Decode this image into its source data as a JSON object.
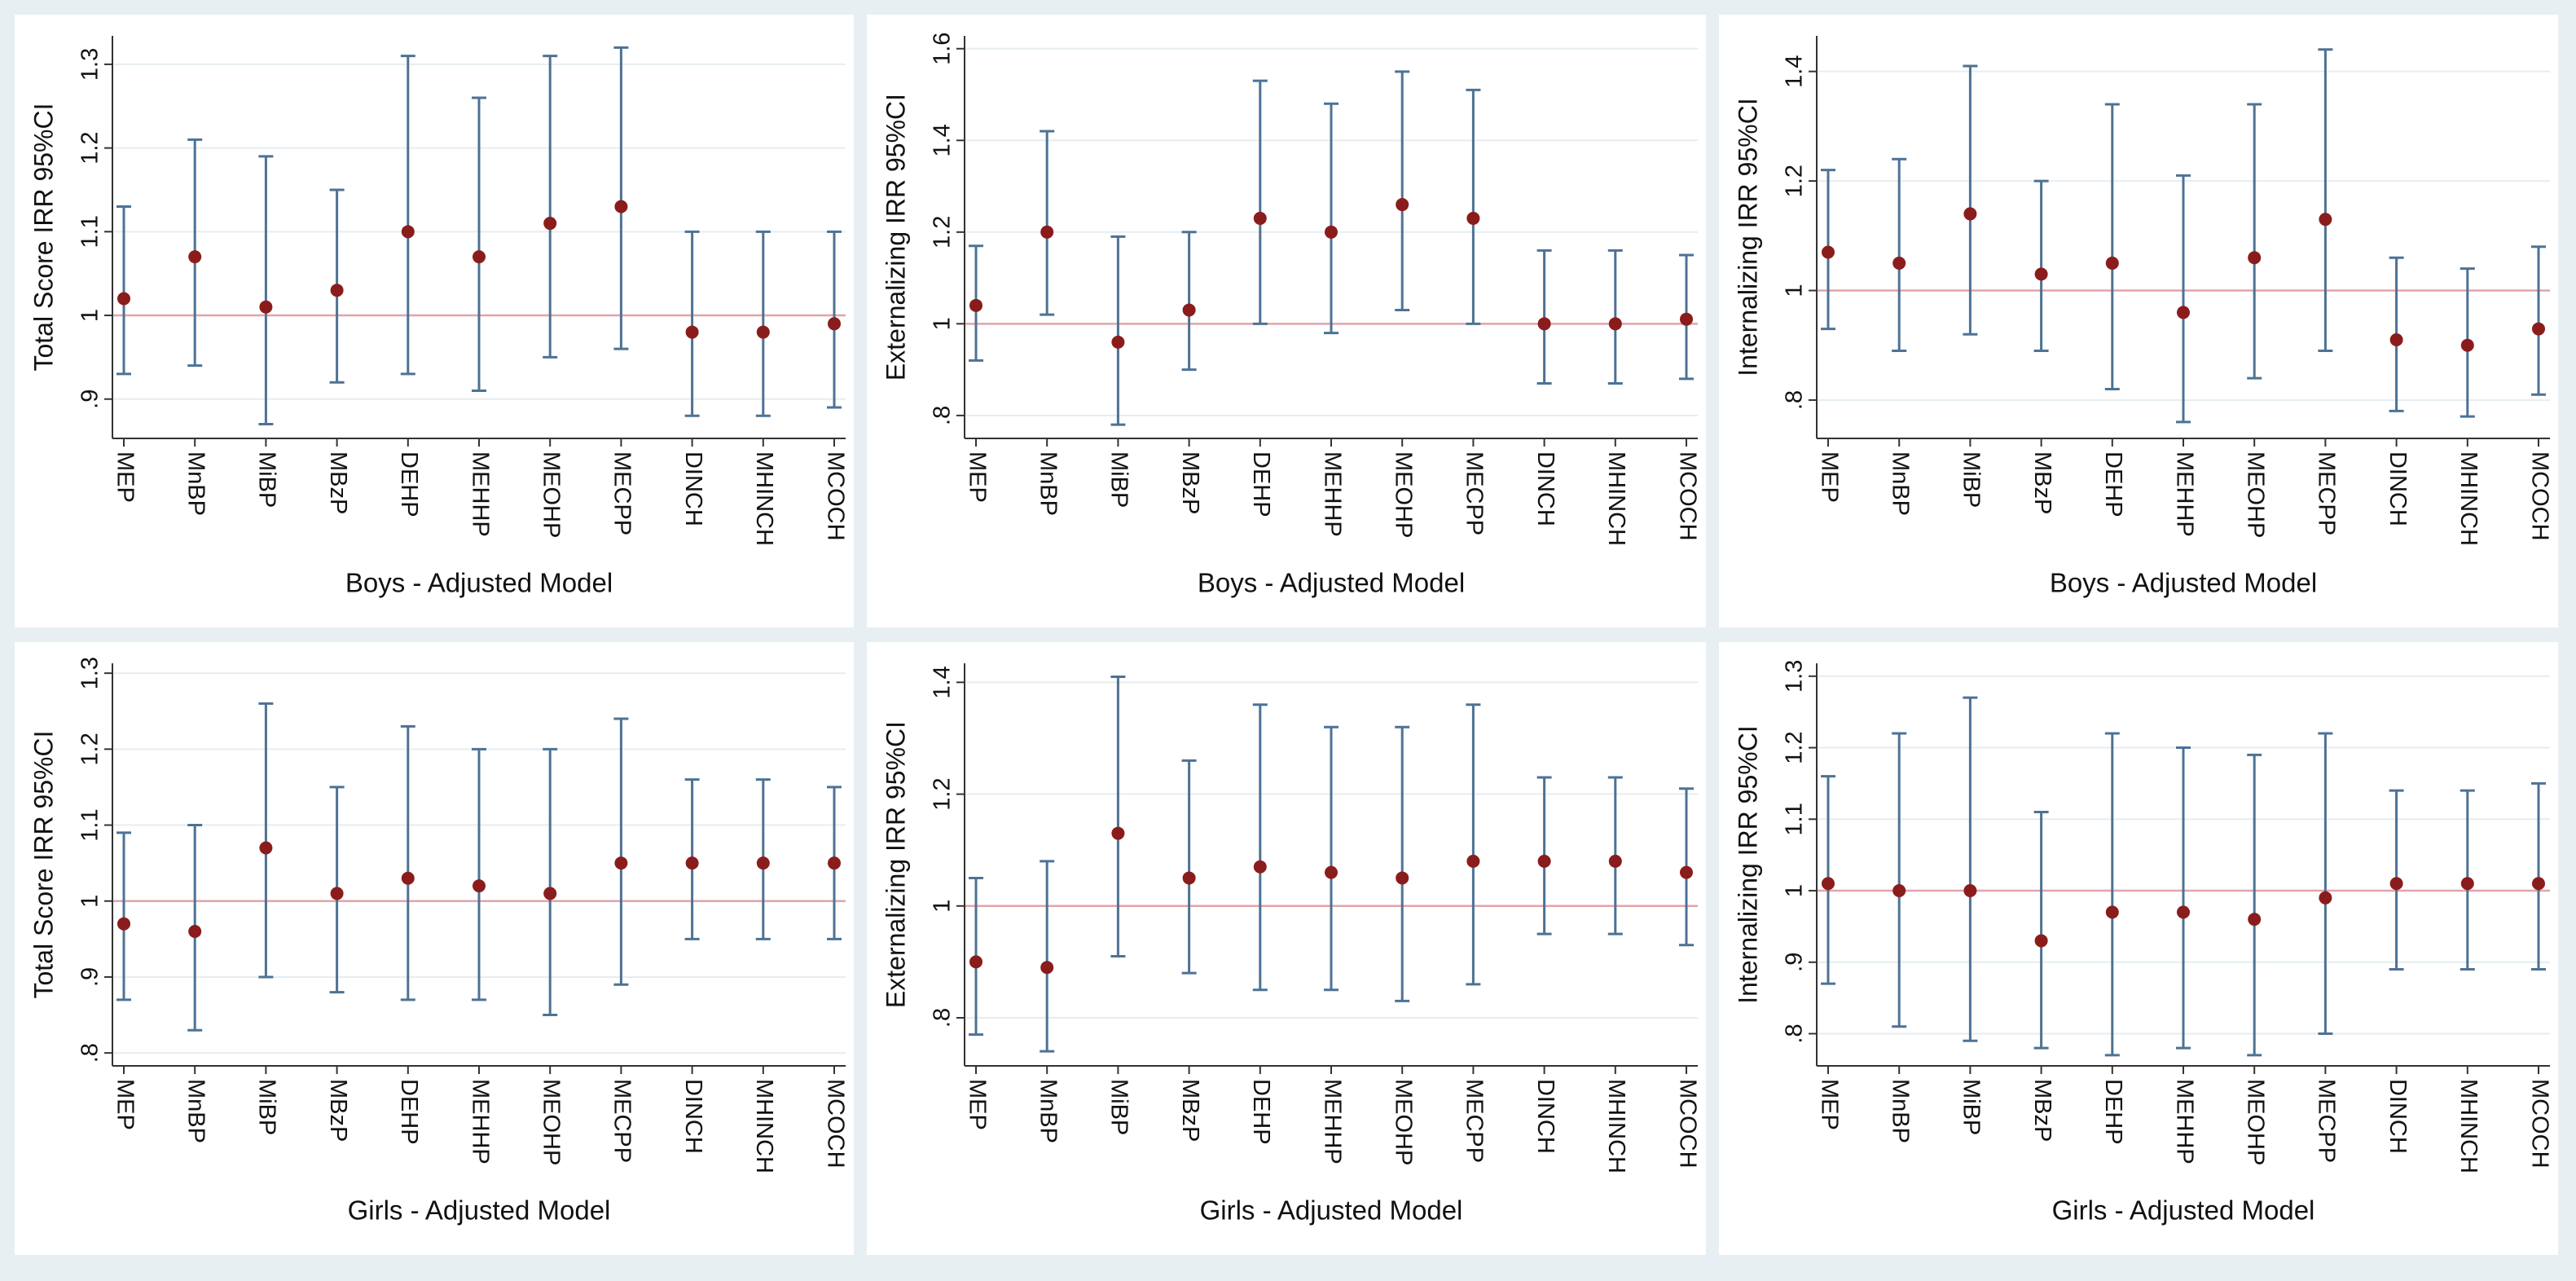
{
  "chart_data": [
    {
      "type": "errorbar",
      "ylabel": "Total Score IRR 95%CI",
      "xlabel": "Boys - Adjusted Model",
      "categories": [
        "MEP",
        "MnBP",
        "MiBP",
        "MBzP",
        "DEHP",
        "MEHHP",
        "MEOHP",
        "MECPP",
        "DINCH",
        "MHINCH",
        "MCOCH"
      ],
      "values": [
        1.02,
        1.07,
        1.01,
        1.03,
        1.1,
        1.07,
        1.11,
        1.13,
        0.98,
        0.98,
        0.99
      ],
      "ci_low": [
        0.93,
        0.94,
        0.87,
        0.92,
        0.93,
        0.91,
        0.95,
        0.96,
        0.88,
        0.88,
        0.89
      ],
      "ci_high": [
        1.13,
        1.21,
        1.19,
        1.15,
        1.31,
        1.26,
        1.31,
        1.32,
        1.1,
        1.1,
        1.1
      ],
      "ylim": [
        0.853,
        1.334
      ],
      "yticks": [
        {
          "value": 0.9,
          "label": ".9"
        },
        1,
        1.1,
        1.2,
        1.3
      ],
      "reference_line": 1,
      "grid": true,
      "color": "#8b1c1c",
      "ci_color": "#4d7294",
      "reference_color": "#e3a3ab"
    },
    {
      "type": "errorbar",
      "ylabel": "Externalizing IRR 95%CI",
      "xlabel": "Boys - Adjusted Model",
      "categories": [
        "MEP",
        "MnBP",
        "MiBP",
        "MBzP",
        "DEHP",
        "MEHHP",
        "MEOHP",
        "MECPP",
        "DINCH",
        "MHINCH",
        "MCOCH"
      ],
      "values": [
        1.04,
        1.2,
        0.96,
        1.03,
        1.23,
        1.2,
        1.26,
        1.23,
        1.0,
        1.0,
        1.01
      ],
      "ci_low": [
        0.92,
        1.02,
        0.78,
        0.9,
        1.0,
        0.98,
        1.03,
        1.0,
        0.87,
        0.87,
        0.88
      ],
      "ci_high": [
        1.17,
        1.42,
        1.19,
        1.2,
        1.53,
        1.48,
        1.55,
        1.51,
        1.16,
        1.16,
        1.15
      ],
      "ylim": [
        0.75,
        1.628
      ],
      "yticks": [
        {
          "value": 0.8,
          "label": ".8"
        },
        1,
        1.2,
        1.4,
        1.6
      ],
      "reference_line": 1,
      "grid": true,
      "color": "#8b1c1c",
      "ci_color": "#4d7294",
      "reference_color": "#e3a3ab"
    },
    {
      "type": "errorbar",
      "ylabel": "Internalizing IRR 95%CI",
      "xlabel": "Boys - Adjusted Model",
      "categories": [
        "MEP",
        "MnBP",
        "MiBP",
        "MBzP",
        "DEHP",
        "MEHHP",
        "MEOHP",
        "MECPP",
        "DINCH",
        "MHINCH",
        "MCOCH"
      ],
      "values": [
        1.07,
        1.05,
        1.14,
        1.03,
        1.05,
        0.96,
        1.06,
        1.13,
        0.91,
        0.9,
        0.93
      ],
      "ci_low": [
        0.93,
        0.89,
        0.92,
        0.89,
        0.82,
        0.76,
        0.84,
        0.89,
        0.78,
        0.77,
        0.81
      ],
      "ci_high": [
        1.22,
        1.24,
        1.41,
        1.2,
        1.34,
        1.21,
        1.34,
        1.44,
        1.06,
        1.04,
        1.08
      ],
      "ylim": [
        0.73,
        1.465
      ],
      "yticks": [
        {
          "value": 0.8,
          "label": ".8"
        },
        1,
        1.2,
        1.4
      ],
      "reference_line": 1,
      "grid": true,
      "color": "#8b1c1c",
      "ci_color": "#4d7294",
      "reference_color": "#e3a3ab"
    },
    {
      "type": "errorbar",
      "ylabel": "Total Score IRR 95%CI",
      "xlabel": "Girls - Adjusted Model",
      "categories": [
        "MEP",
        "MnBP",
        "MiBP",
        "MBzP",
        "DEHP",
        "MEHHP",
        "MEOHP",
        "MECPP",
        "DINCH",
        "MHINCH",
        "MCOCH"
      ],
      "values": [
        0.97,
        0.96,
        1.07,
        1.01,
        1.03,
        1.02,
        1.01,
        1.05,
        1.05,
        1.05,
        1.05
      ],
      "ci_low": [
        0.87,
        0.83,
        0.9,
        0.88,
        0.87,
        0.87,
        0.85,
        0.89,
        0.95,
        0.95,
        0.95
      ],
      "ci_high": [
        1.09,
        1.1,
        1.26,
        1.15,
        1.23,
        1.2,
        1.2,
        1.24,
        1.16,
        1.16,
        1.15
      ],
      "ylim": [
        0.783,
        1.313
      ],
      "yticks": [
        {
          "value": 0.8,
          "label": ".8"
        },
        {
          "value": 0.9,
          "label": ".9"
        },
        1,
        1.1,
        1.2,
        1.3
      ],
      "reference_line": 1,
      "grid": true,
      "color": "#8b1c1c",
      "ci_color": "#4d7294",
      "reference_color": "#e3a3ab"
    },
    {
      "type": "errorbar",
      "ylabel": "Externalizing IRR 95%CI",
      "xlabel": "Girls - Adjusted Model",
      "categories": [
        "MEP",
        "MnBP",
        "MiBP",
        "MBzP",
        "DEHP",
        "MEHHP",
        "MEOHP",
        "MECPP",
        "DINCH",
        "MHINCH",
        "MCOCH"
      ],
      "values": [
        0.9,
        0.89,
        1.13,
        1.05,
        1.07,
        1.06,
        1.05,
        1.08,
        1.08,
        1.08,
        1.06
      ],
      "ci_low": [
        0.77,
        0.74,
        0.91,
        0.88,
        0.85,
        0.85,
        0.83,
        0.86,
        0.95,
        0.95,
        0.93
      ],
      "ci_high": [
        1.05,
        1.08,
        1.41,
        1.26,
        1.36,
        1.32,
        1.32,
        1.36,
        1.23,
        1.23,
        1.21
      ],
      "ylim": [
        0.714,
        1.434
      ],
      "yticks": [
        {
          "value": 0.8,
          "label": ".8"
        },
        1,
        1.2,
        1.4
      ],
      "reference_line": 1,
      "grid": true,
      "color": "#8b1c1c",
      "ci_color": "#4d7294",
      "reference_color": "#e3a3ab"
    },
    {
      "type": "errorbar",
      "ylabel": "Internalizing IRR 95%CI",
      "xlabel": "Girls - Adjusted Model",
      "categories": [
        "MEP",
        "MnBP",
        "MiBP",
        "MBzP",
        "DEHP",
        "MEHHP",
        "MEOHP",
        "MECPP",
        "DINCH",
        "MHINCH",
        "MCOCH"
      ],
      "values": [
        1.01,
        1.0,
        1.0,
        0.93,
        0.97,
        0.97,
        0.96,
        0.99,
        1.01,
        1.01,
        1.01
      ],
      "ci_low": [
        0.87,
        0.81,
        0.79,
        0.78,
        0.77,
        0.78,
        0.77,
        0.8,
        0.89,
        0.89,
        0.89
      ],
      "ci_high": [
        1.16,
        1.22,
        1.27,
        1.11,
        1.22,
        1.2,
        1.19,
        1.22,
        1.14,
        1.14,
        1.15
      ],
      "ylim": [
        0.755,
        1.318
      ],
      "yticks": [
        {
          "value": 0.8,
          "label": ".8"
        },
        {
          "value": 0.9,
          "label": ".9"
        },
        1,
        1.1,
        1.2,
        1.3
      ],
      "reference_line": 1,
      "grid": true,
      "color": "#8b1c1c",
      "ci_color": "#4d7294",
      "reference_color": "#e3a3ab"
    }
  ]
}
